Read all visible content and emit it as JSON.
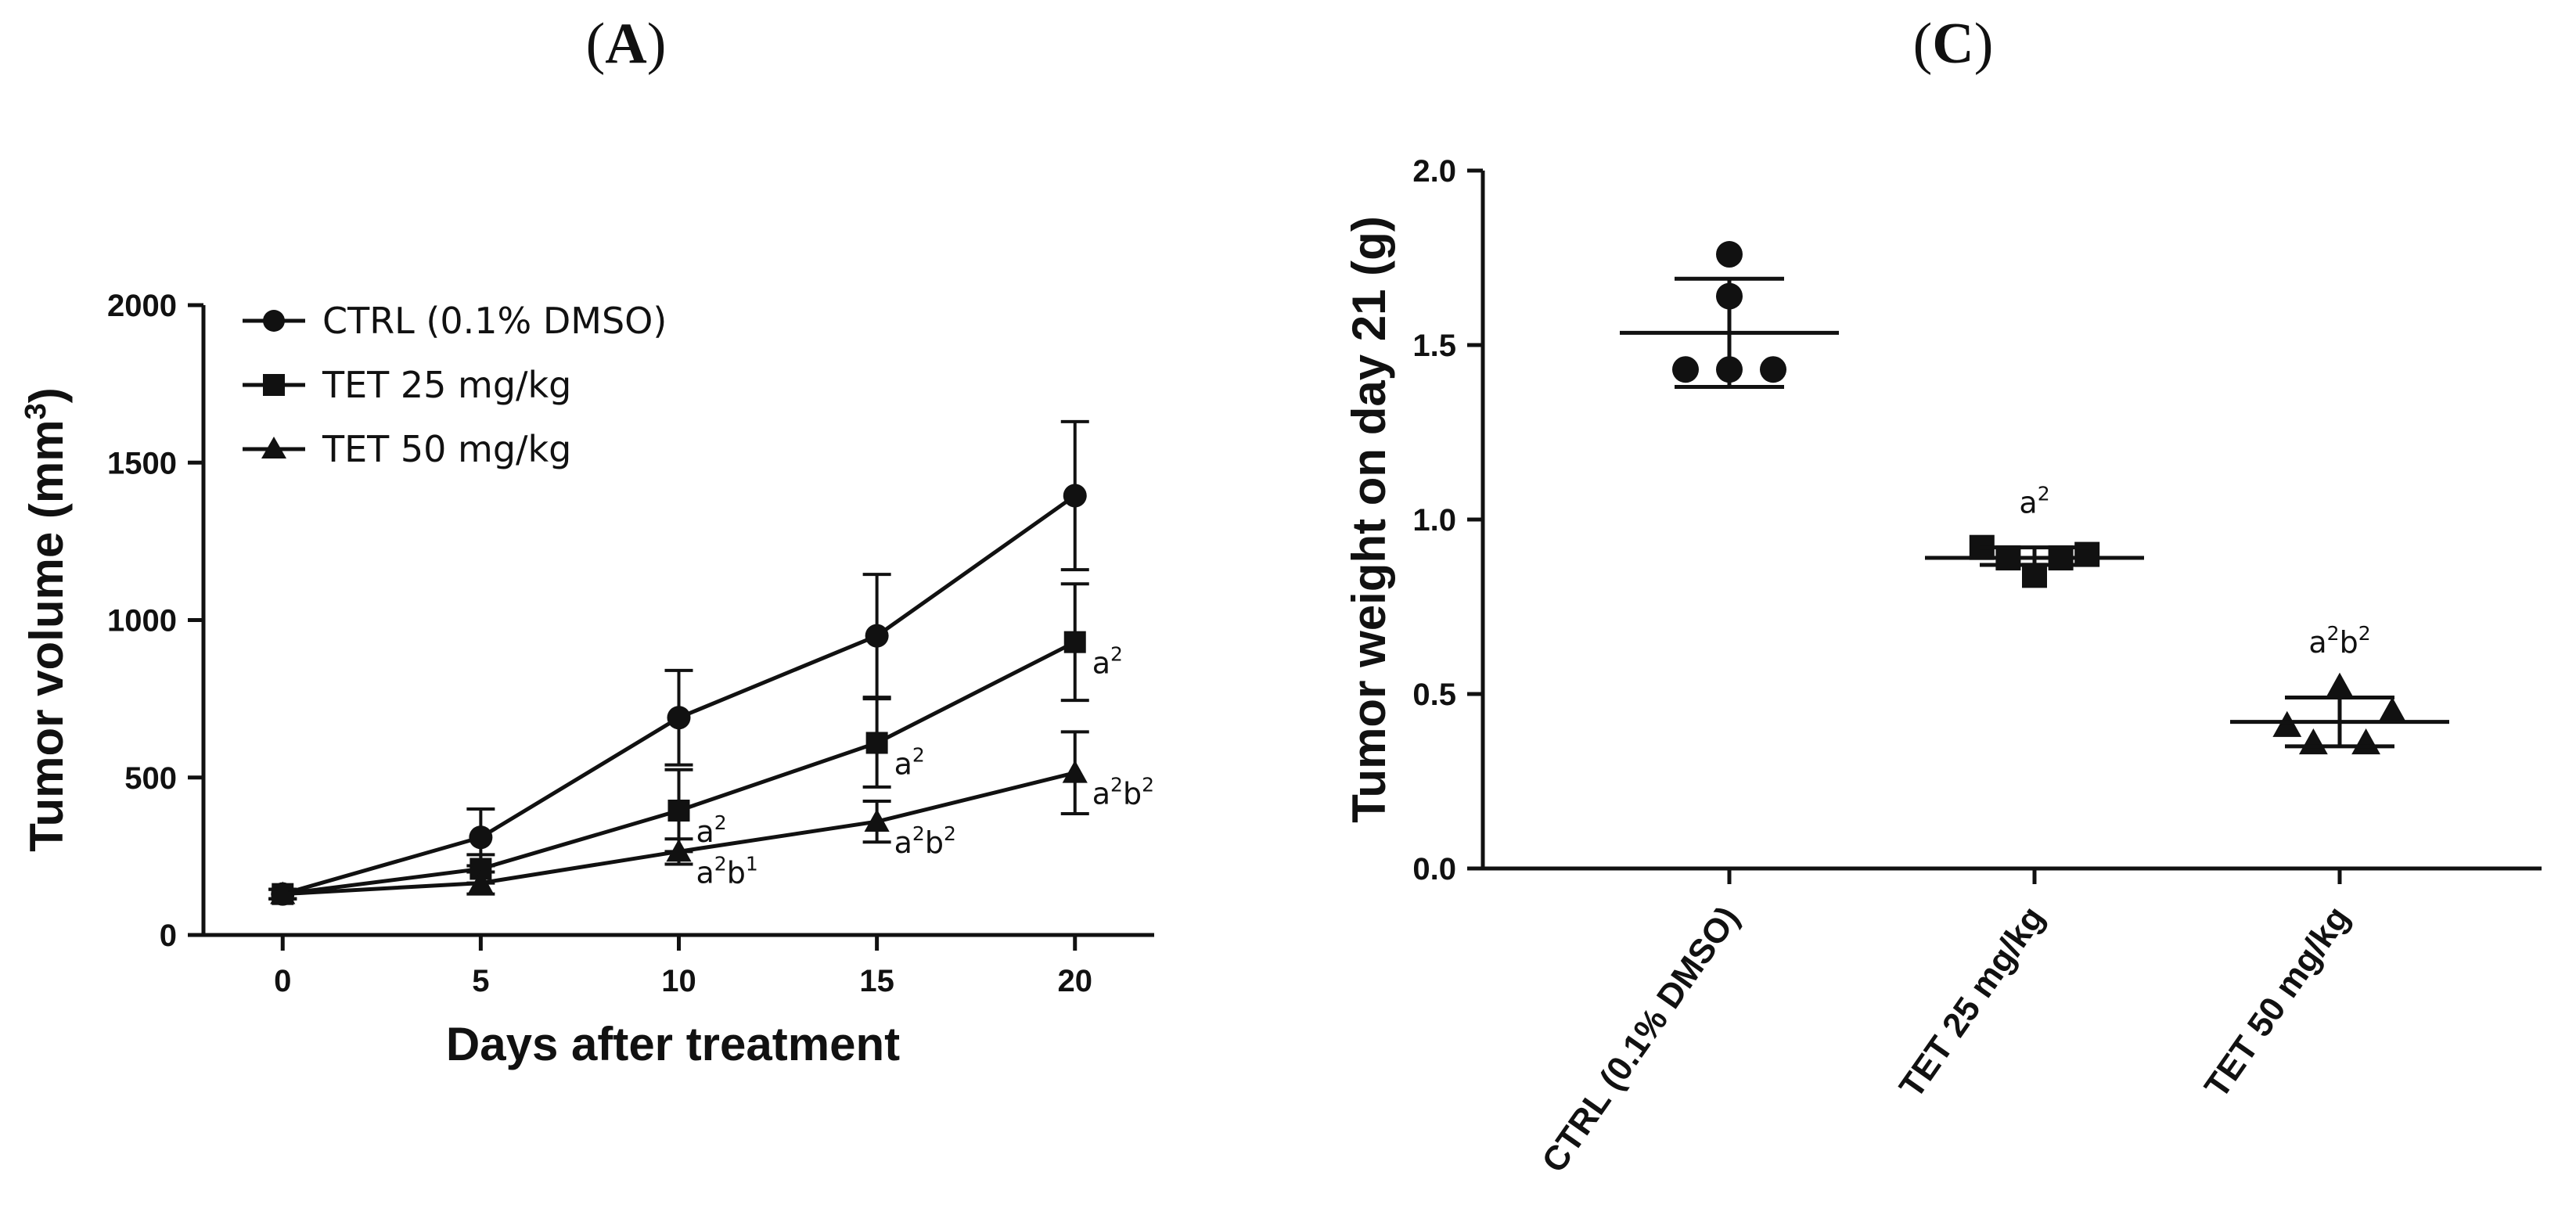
{
  "figure": {
    "panel_a_label": "A",
    "panel_c_label": "C"
  },
  "chart_data": [
    {
      "panel": "A",
      "type": "line",
      "title": "",
      "xlabel": "Days after treatment",
      "ylabel_main": "Tumor volume (mm",
      "ylabel_sup": "3",
      "ylabel_end": ")",
      "xlim": [
        -2,
        22
      ],
      "ylim": [
        0,
        2000
      ],
      "xticks": [
        0,
        5,
        10,
        15,
        20
      ],
      "yticks": [
        0,
        500,
        1000,
        1500,
        2000
      ],
      "grid": false,
      "legend_position": "top-left",
      "series": [
        {
          "name": "CTRL (0.1% DMSO)",
          "marker": "circle",
          "x": [
            0,
            5,
            10,
            15,
            20
          ],
          "y": [
            130,
            310,
            690,
            950,
            1395
          ],
          "err": [
            15,
            90,
            150,
            195,
            235
          ]
        },
        {
          "name": "TET 25 mg/kg",
          "marker": "square",
          "x": [
            0,
            5,
            10,
            15,
            20
          ],
          "y": [
            130,
            210,
            395,
            610,
            930
          ],
          "err": [
            15,
            45,
            130,
            140,
            185
          ]
        },
        {
          "name": "TET 50 mg/kg",
          "marker": "triangle",
          "x": [
            0,
            5,
            10,
            15,
            20
          ],
          "y": [
            130,
            165,
            265,
            360,
            515
          ],
          "err": [
            15,
            35,
            40,
            65,
            130
          ]
        }
      ],
      "annotations": [
        {
          "series": "TET 25 mg/kg",
          "x": 10,
          "y": 395,
          "base1": "a",
          "sup1": "2",
          "base2": "",
          "sup2": ""
        },
        {
          "series": "TET 50 mg/kg",
          "x": 10,
          "y": 265,
          "base1": "a",
          "sup1": "2",
          "base2": "b",
          "sup2": "1"
        },
        {
          "series": "TET 25 mg/kg",
          "x": 15,
          "y": 610,
          "base1": "a",
          "sup1": "2",
          "base2": "",
          "sup2": ""
        },
        {
          "series": "TET 50 mg/kg",
          "x": 15,
          "y": 360,
          "base1": "a",
          "sup1": "2",
          "base2": "b",
          "sup2": "2"
        },
        {
          "series": "TET 25 mg/kg",
          "x": 20,
          "y": 930,
          "base1": "a",
          "sup1": "2",
          "base2": "",
          "sup2": ""
        },
        {
          "series": "TET 50 mg/kg",
          "x": 20,
          "y": 515,
          "base1": "a",
          "sup1": "2",
          "base2": "b",
          "sup2": "2"
        }
      ]
    },
    {
      "panel": "C",
      "type": "scatter",
      "title": "",
      "xlabel": "",
      "ylabel": "Tumor weight on day 21 (g)",
      "ylim": [
        0,
        2.0
      ],
      "yticks": [
        "0.0",
        "0.5",
        "1.0",
        "1.5",
        "2.0"
      ],
      "grid": false,
      "categories": [
        "CTRL (0.1% DMSO)",
        "TET 25 mg/kg",
        "TET 50 mg/kg"
      ],
      "groups": [
        {
          "name": "CTRL (0.1% DMSO)",
          "marker": "circle",
          "points": [
            1.76,
            1.64,
            1.43,
            1.43,
            1.43
          ],
          "offsets": [
            0,
            0,
            -0.5,
            0,
            0.5
          ],
          "mean": 1.535,
          "sd_low": 1.38,
          "sd_high": 1.69,
          "annotation": {
            "base1": "",
            "sup1": "",
            "base2": "",
            "sup2": ""
          }
        },
        {
          "name": "TET 25 mg/kg",
          "marker": "square",
          "points": [
            0.92,
            0.89,
            0.84,
            0.89,
            0.9
          ],
          "offsets": [
            -0.6,
            -0.3,
            0,
            0.3,
            0.6
          ],
          "mean": 0.89,
          "sd_low": 0.87,
          "sd_high": 0.92,
          "annotation": {
            "base1": "a",
            "sup1": "2",
            "base2": "",
            "sup2": ""
          }
        },
        {
          "name": "TET 50 mg/kg",
          "marker": "triangle",
          "points": [
            0.41,
            0.36,
            0.52,
            0.36,
            0.45
          ],
          "offsets": [
            -0.6,
            -0.3,
            0,
            0.3,
            0.6
          ],
          "mean": 0.42,
          "sd_low": 0.35,
          "sd_high": 0.49,
          "annotation": {
            "base1": "a",
            "sup1": "2",
            "base2": "b",
            "sup2": "2"
          }
        }
      ]
    }
  ]
}
